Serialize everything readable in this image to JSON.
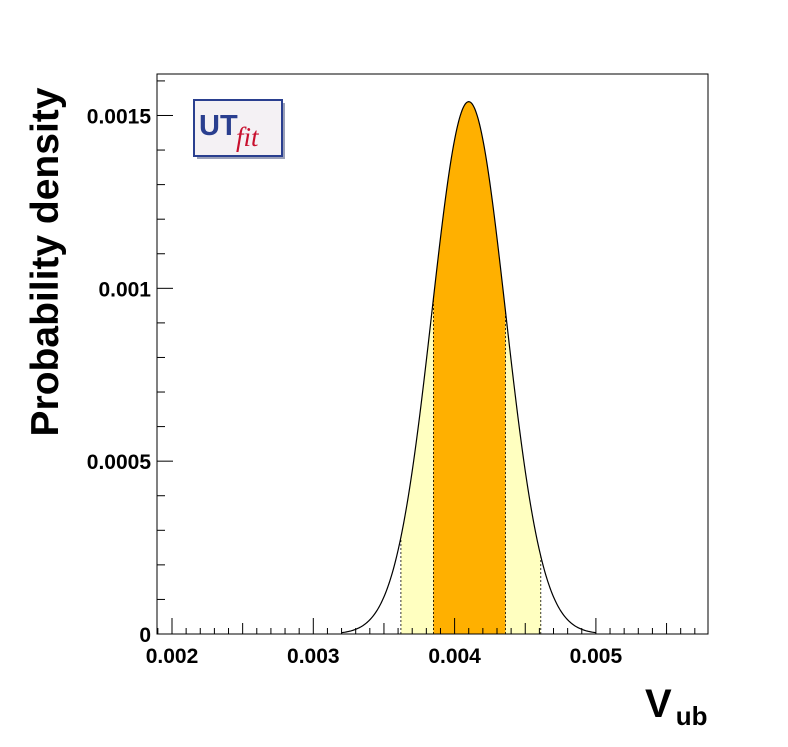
{
  "chart_data": {
    "type": "area",
    "title": "",
    "xlabel": "V",
    "xlabel_sub": "ub",
    "ylabel": "Probability density",
    "xlim": [
      0.0019,
      0.0058
    ],
    "ylim": [
      0,
      0.00162
    ],
    "x_ticks": [
      {
        "value": 0.002,
        "label": "0.002"
      },
      {
        "value": 0.003,
        "label": "0.003"
      },
      {
        "value": 0.004,
        "label": "0.004"
      },
      {
        "value": 0.005,
        "label": "0.005"
      }
    ],
    "y_ticks": [
      {
        "value": 0,
        "label": "0"
      },
      {
        "value": 0.0005,
        "label": "0.0005"
      },
      {
        "value": 0.001,
        "label": "0.001"
      },
      {
        "value": 0.0015,
        "label": "0.0015"
      }
    ],
    "distribution": {
      "mean": 0.0041,
      "sigma": 0.00026,
      "peak": 0.00154,
      "x_min": 0.0032,
      "x_max": 0.005
    },
    "interval_68": [
      0.00385,
      0.00436
    ],
    "interval_95": [
      0.00362,
      0.00461
    ],
    "colors": {
      "curve": "#000000",
      "band_68": "#ffb000",
      "band_95": "#ffffc0",
      "frame": "#000000"
    },
    "grid": false,
    "logo": {
      "main": "UT",
      "accent": "fit"
    }
  }
}
